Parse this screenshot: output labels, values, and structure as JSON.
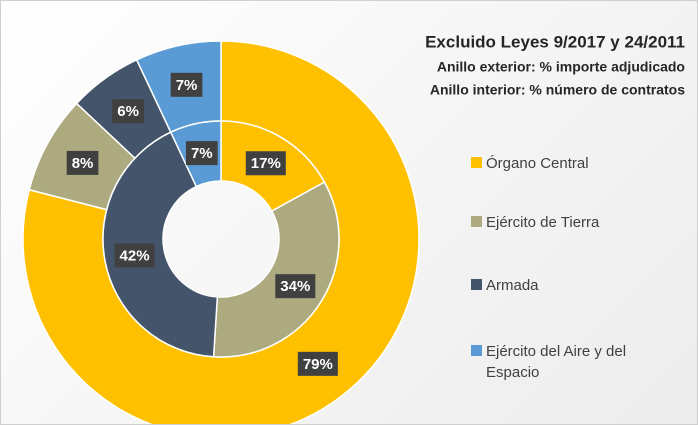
{
  "chart_data": {
    "type": "donut",
    "title": "Excluido Leyes 9/2017 y 24/2011",
    "subtitle": [
      "Anillo exterior: % importe adjudicado",
      "Anillo interior: % número de contratos"
    ],
    "categories": [
      "Órgano Central",
      "Ejército de Tierra",
      "Armada",
      "Ejército del Aire y del Espacio"
    ],
    "colors": [
      "#FFC000",
      "#ADAA80",
      "#44546A",
      "#5B9BD5"
    ],
    "series": [
      {
        "values": [
          79,
          8,
          6,
          7
        ],
        "value_labels": [
          "79%",
          "8%",
          "6%",
          "7%"
        ]
      },
      {
        "values": [
          17,
          34,
          42,
          7
        ],
        "value_labels": [
          "17%",
          "34%",
          "42%",
          "7%"
        ]
      }
    ],
    "legend": "right"
  }
}
